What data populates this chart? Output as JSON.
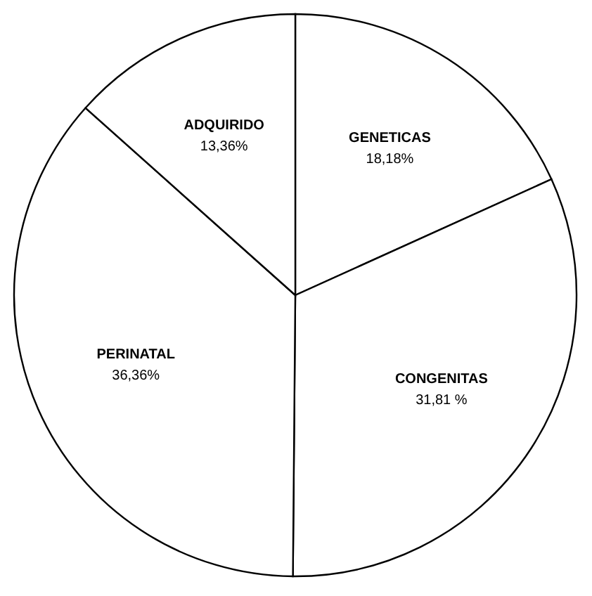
{
  "chart_data": {
    "type": "pie",
    "categories": [
      "GENETICAS",
      "CONGENITAS",
      "PERINATAL",
      "ADQUIRIDO"
    ],
    "values": [
      18.18,
      31.81,
      36.36,
      13.36
    ],
    "value_labels": [
      "18,18%",
      "31,81 %",
      "36,36%",
      "13,36%"
    ],
    "colors": [
      "#ffffff",
      "#ffffff",
      "#ffffff",
      "#ffffff"
    ]
  }
}
